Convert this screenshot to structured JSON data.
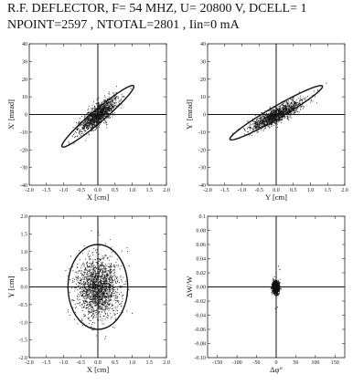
{
  "title": {
    "line1": "R.F. DEFLECTOR, F= 54 MHZ, U= 20800 V, DCELL= 1",
    "line2": "NPOINT=2597 , NTOTAL=2801 , Iin=0 mA"
  },
  "chart_data": [
    {
      "type": "scatter",
      "name": "x-xprime",
      "xlabel": "X [cm]",
      "ylabel": "X' [mrad]",
      "xlim": [
        -2.0,
        2.0
      ],
      "ylim": [
        -40,
        40
      ],
      "xticks": [
        "-2.0",
        "-1.5",
        "-1.0",
        "-0.5",
        "0.0",
        "0.5",
        "1.0",
        "1.5",
        "2.0"
      ],
      "yticks": [
        "-40",
        "-30",
        "-20",
        "-10",
        "0",
        "10",
        "20",
        "30",
        "40"
      ],
      "ellipse": {
        "cx": 0.0,
        "cy": -1.0,
        "a": 1.05,
        "b": 4.6,
        "slope": 16.0
      },
      "cloud": {
        "sx": 0.28,
        "sy": 3.0,
        "slope": 14.0,
        "mx": 0.0,
        "my": 0.0,
        "n": 1300
      },
      "outliers": [
        [
          0.95,
          15
        ],
        [
          -0.75,
          -12
        ],
        [
          -0.85,
          -16
        ]
      ]
    },
    {
      "type": "scatter",
      "name": "y-yprime",
      "xlabel": "Y [cm]",
      "ylabel": "Y' [mrad]",
      "xlim": [
        -2.0,
        2.0
      ],
      "ylim": [
        -40,
        40
      ],
      "xticks": [
        "-2.0",
        "-1.5",
        "-1.0",
        "-0.5",
        "0.0",
        "0.5",
        "1.0",
        "1.5",
        "2.0"
      ],
      "yticks": [
        "-40",
        "-30",
        "-20",
        "-10",
        "0",
        "10",
        "20",
        "30",
        "40"
      ],
      "ellipse": {
        "cx": 0.0,
        "cy": 1.0,
        "a": 1.35,
        "b": 4.0,
        "slope": 11.0
      },
      "cloud": {
        "sx": 0.38,
        "sy": 2.2,
        "slope": 9.0,
        "mx": 0.0,
        "my": 0.0,
        "n": 1300
      },
      "outliers": [
        [
          1.45,
          18
        ],
        [
          1.2,
          14
        ],
        [
          -1.3,
          -12
        ]
      ]
    },
    {
      "type": "scatter",
      "name": "x-y",
      "xlabel": "X [cm]",
      "ylabel": "Y [cm]",
      "xlim": [
        -2.0,
        2.0
      ],
      "ylim": [
        -2.0,
        2.0
      ],
      "xticks": [
        "-2.0",
        "-1.5",
        "-1.0",
        "-0.5",
        "0.0",
        "0.5",
        "1.0",
        "1.5",
        "2.0"
      ],
      "yticks": [
        "-2.0",
        "-1.5",
        "-1.0",
        "-0.5",
        "0.0",
        "0.5",
        "1.0",
        "1.5",
        "2.0"
      ],
      "ellipse": {
        "cx": 0.0,
        "cy": 0.0,
        "a": 0.87,
        "b": 1.2,
        "slope": 0.0
      },
      "cloud": {
        "sx": 0.3,
        "sy": 0.42,
        "slope": 0.0,
        "mx": 0.0,
        "my": 0.0,
        "n": 1800
      },
      "outliers": [
        [
          0.0,
          1.55
        ],
        [
          -0.2,
          1.6
        ],
        [
          0.2,
          -1.45
        ]
      ]
    },
    {
      "type": "scatter",
      "name": "dphi-dw",
      "xlabel": "Δφ°",
      "ylabel": "ΔW/W",
      "xlim": [
        -175,
        175
      ],
      "ylim": [
        -0.1,
        0.1
      ],
      "xticks": [
        "-150",
        "-100",
        "-50",
        "0",
        "50",
        "100",
        "150"
      ],
      "xtick_values": [
        -150,
        -100,
        -50,
        0,
        50,
        100,
        150
      ],
      "yticks": [
        "-0.10",
        "-0.08",
        "-0.06",
        "-0.04",
        "-0.02",
        "0.00",
        "0.02",
        "0.04",
        "0.06",
        "0.08",
        "0.1"
      ],
      "cloud": {
        "sx": 4.0,
        "sy": 0.004,
        "slope": 0.0,
        "mx": -2.0,
        "my": 0.0,
        "n": 1400
      },
      "outliers": [
        [
          5,
          0.03
        ],
        [
          8,
          0.025
        ],
        [
          -3,
          -0.03
        ],
        [
          2,
          -0.028
        ]
      ]
    }
  ]
}
